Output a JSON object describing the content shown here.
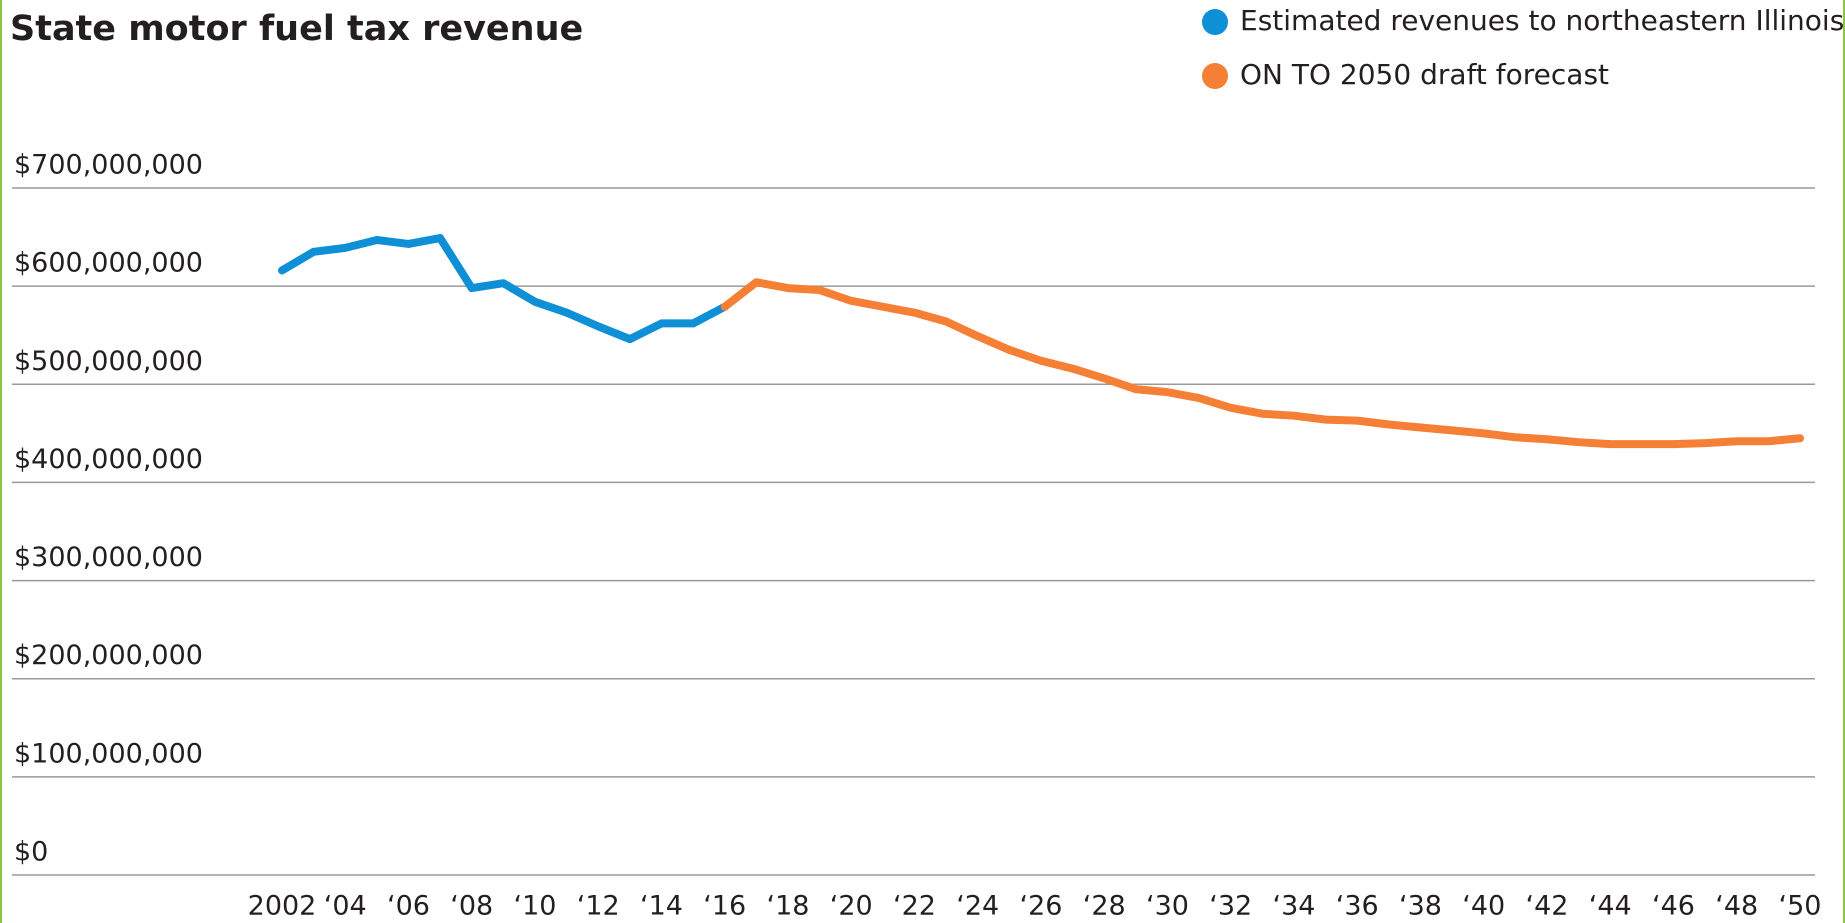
{
  "chart_data": {
    "type": "line",
    "title": "State motor fuel tax revenue",
    "x": [
      2002,
      2003,
      2004,
      2005,
      2006,
      2007,
      2008,
      2009,
      2010,
      2011,
      2012,
      2013,
      2014,
      2015,
      2016,
      2017,
      2018,
      2019,
      2020,
      2021,
      2022,
      2023,
      2024,
      2025,
      2026,
      2027,
      2028,
      2029,
      2030,
      2031,
      2032,
      2033,
      2034,
      2035,
      2036,
      2037,
      2038,
      2039,
      2040,
      2041,
      2042,
      2043,
      2044,
      2045,
      2046,
      2047,
      2048,
      2049,
      2050
    ],
    "series": [
      {
        "name": "Estimated revenues to northeastern Illinois",
        "color": "#0f8fd6",
        "values": [
          616000000,
          635000000,
          639000000,
          647000000,
          643000000,
          649000000,
          598000000,
          603000000,
          584000000,
          573000000,
          559000000,
          546000000,
          562000000,
          562000000,
          579000000,
          null,
          null,
          null,
          null,
          null,
          null,
          null,
          null,
          null,
          null,
          null,
          null,
          null,
          null,
          null,
          null,
          null,
          null,
          null,
          null,
          null,
          null,
          null,
          null,
          null,
          null,
          null,
          null,
          null,
          null,
          null,
          null,
          null,
          null
        ]
      },
      {
        "name": "ON TO 2050 draft forecast",
        "color": "#f47f35",
        "values": [
          null,
          null,
          null,
          null,
          null,
          null,
          null,
          null,
          null,
          null,
          null,
          null,
          null,
          null,
          579000000,
          604000000,
          598000000,
          596000000,
          585000000,
          579000000,
          573000000,
          564000000,
          549000000,
          535000000,
          524000000,
          516000000,
          506000000,
          495000000,
          492000000,
          486000000,
          476000000,
          470000000,
          468000000,
          464000000,
          463000000,
          459000000,
          456000000,
          453000000,
          450000000,
          446000000,
          444000000,
          441000000,
          439000000,
          439000000,
          439000000,
          440000000,
          442000000,
          442000000,
          445000000
        ]
      }
    ],
    "xlim": [
      2002,
      2050
    ],
    "xticks": [
      {
        "value": 2002,
        "label": "2002"
      },
      {
        "value": 2004,
        "label": "‘04"
      },
      {
        "value": 2006,
        "label": "‘06"
      },
      {
        "value": 2008,
        "label": "‘08"
      },
      {
        "value": 2010,
        "label": "‘10"
      },
      {
        "value": 2012,
        "label": "‘12"
      },
      {
        "value": 2014,
        "label": "‘14"
      },
      {
        "value": 2016,
        "label": "‘16"
      },
      {
        "value": 2018,
        "label": "‘18"
      },
      {
        "value": 2020,
        "label": "‘20"
      },
      {
        "value": 2022,
        "label": "‘22"
      },
      {
        "value": 2024,
        "label": "‘24"
      },
      {
        "value": 2026,
        "label": "‘26"
      },
      {
        "value": 2028,
        "label": "‘28"
      },
      {
        "value": 2030,
        "label": "‘30"
      },
      {
        "value": 2032,
        "label": "‘32"
      },
      {
        "value": 2034,
        "label": "‘34"
      },
      {
        "value": 2036,
        "label": "‘36"
      },
      {
        "value": 2038,
        "label": "‘38"
      },
      {
        "value": 2040,
        "label": "‘40"
      },
      {
        "value": 2042,
        "label": "‘42"
      },
      {
        "value": 2044,
        "label": "‘44"
      },
      {
        "value": 2046,
        "label": "‘46"
      },
      {
        "value": 2048,
        "label": "‘48"
      },
      {
        "value": 2050,
        "label": "‘50"
      }
    ],
    "ylim": [
      0,
      700000000
    ],
    "yticks": [
      {
        "value": 0,
        "label": "$0"
      },
      {
        "value": 100000000,
        "label": "$100,000,000"
      },
      {
        "value": 200000000,
        "label": "$200,000,000"
      },
      {
        "value": 300000000,
        "label": "$300,000,000"
      },
      {
        "value": 400000000,
        "label": "$400,000,000"
      },
      {
        "value": 500000000,
        "label": "$500,000,000"
      },
      {
        "value": 600000000,
        "label": "$600,000,000"
      },
      {
        "value": 700000000,
        "label": "$700,000,000"
      }
    ],
    "grid": true,
    "legend": "top-right"
  }
}
